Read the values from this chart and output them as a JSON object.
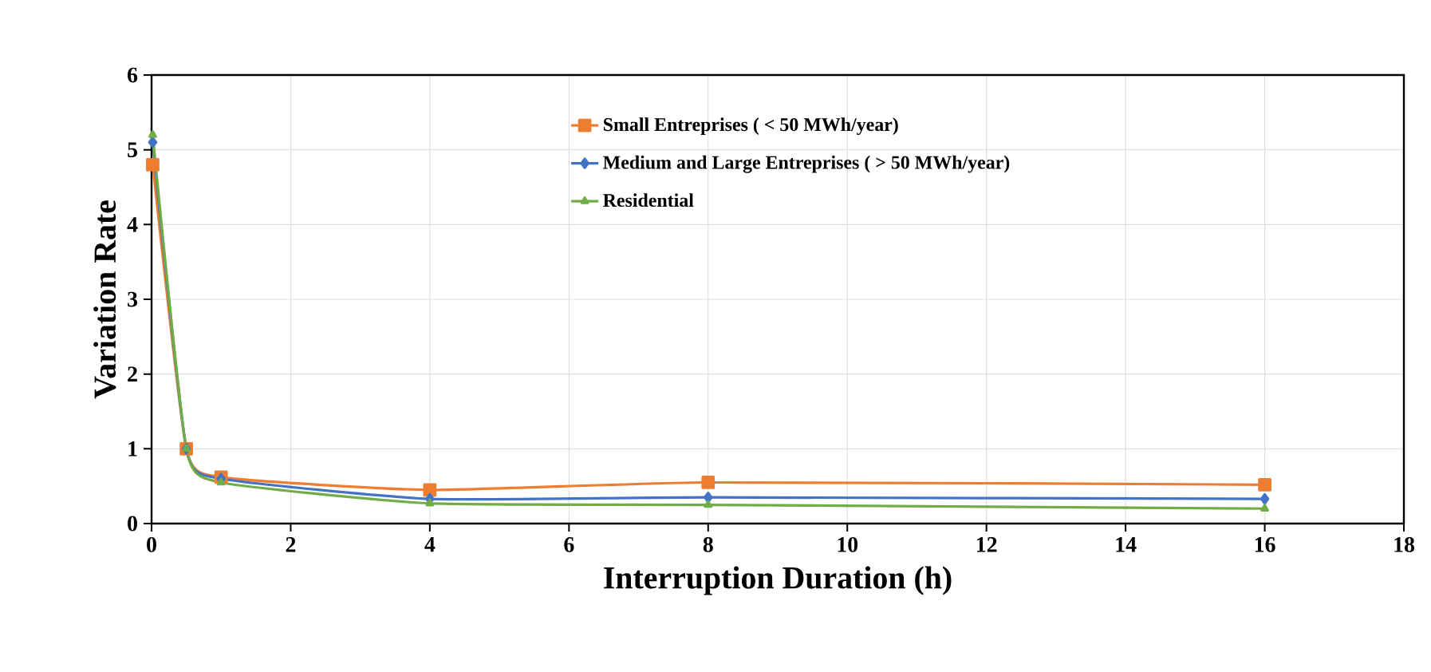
{
  "chart_data": {
    "type": "line",
    "xlabel": "Interruption Duration (h)",
    "ylabel": "Variation Rate",
    "x": [
      0.0167,
      0.5,
      1,
      4,
      8,
      16
    ],
    "series": [
      {
        "name": "Small Entreprises ( < 50 MWh/year)",
        "color": "#ed7d31",
        "marker": "square",
        "values": [
          4.8,
          1.0,
          0.62,
          0.45,
          0.55,
          0.52
        ]
      },
      {
        "name": "Medium and Large Entreprises ( > 50 MWh/year)",
        "color": "#4472c4",
        "marker": "diamond",
        "values": [
          5.1,
          1.0,
          0.6,
          0.33,
          0.35,
          0.33
        ]
      },
      {
        "name": "Residential",
        "color": "#70ad47",
        "marker": "triangle",
        "values": [
          5.2,
          1.0,
          0.55,
          0.27,
          0.25,
          0.2
        ]
      }
    ],
    "xlim": [
      0,
      18
    ],
    "xticks": [
      0,
      2,
      4,
      6,
      8,
      10,
      12,
      14,
      16,
      18
    ],
    "ylim": [
      0,
      6
    ],
    "yticks": [
      0,
      1,
      2,
      3,
      4,
      5,
      6
    ],
    "grid": true,
    "legend": "top",
    "line_style": "solid"
  }
}
